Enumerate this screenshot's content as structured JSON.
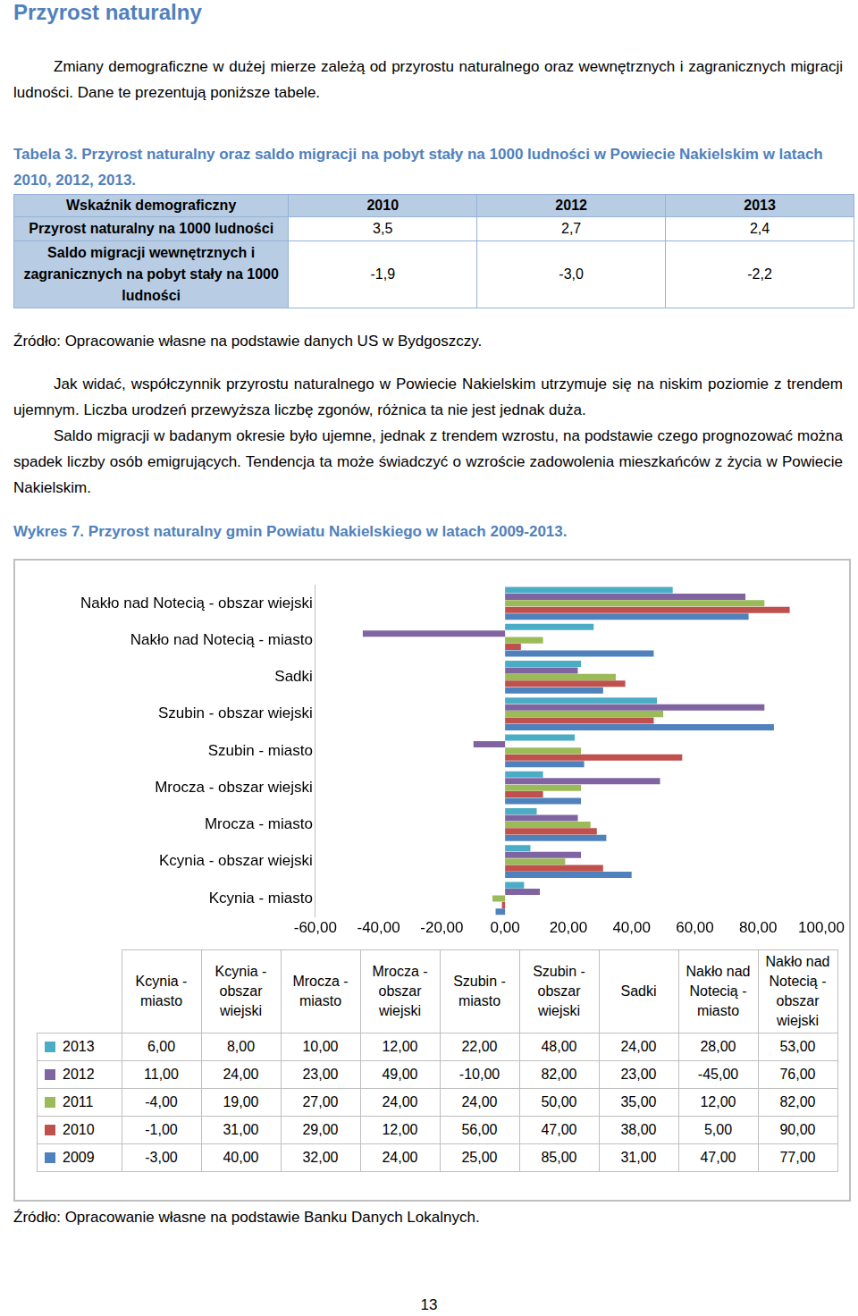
{
  "heading": "Przyrost naturalny",
  "intro": "Zmiany demograficzne w dużej mierze zależą od przyrostu naturalnego oraz wewnętrznych i zagranicznych migracji ludności. Dane te prezentują poniższe tabele.",
  "table3": {
    "caption": "Tabela 3. Przyrost naturalny oraz saldo migracji na pobyt stały na 1000 ludności w Powiecie Nakielskim w latach 2010, 2012, 2013.",
    "header": [
      "Wskaźnik demograficzny",
      "2010",
      "2012",
      "2013"
    ],
    "rows": [
      [
        "Przyrost naturalny na 1000 ludności",
        "3,5",
        "2,7",
        "2,4"
      ],
      [
        "Saldo migracji wewnętrznych i zagranicznych na pobyt stały na 1000 ludności",
        "-1,9",
        "-3,0",
        "-2,2"
      ]
    ],
    "source": "Źródło: Opracowanie własne na podstawie danych US w Bydgoszczy."
  },
  "paragraphs": [
    "Jak widać, współczynnik przyrostu naturalnego w Powiecie Nakielskim utrzymuje się na niskim poziomie z trendem ujemnym. Liczba urodzeń przewyższa liczbę zgonów, różnica ta nie jest jednak duża.",
    "Saldo migracji w badanym okresie było ujemne, jednak z trendem wzrostu, na podstawie czego prognozować można spadek liczby osób emigrujących. Tendencja ta może świadczyć o wzroście zadowolenia mieszkańców z życia w Powiecie Nakielskim."
  ],
  "chart_data": {
    "type": "bar",
    "orientation": "horizontal",
    "title": "Wykres 7. Przyrost naturalny gmin Powiatu Nakielskiego w latach 2009-2013.",
    "categories": [
      "Kcynia - miasto",
      "Kcynia - obszar wiejski",
      "Mrocza - miasto",
      "Mrocza - obszar wiejski",
      "Szubin - miasto",
      "Szubin - obszar wiejski",
      "Sadki",
      "Nakło nad Notecią - miasto",
      "Nakło nad Notecią - obszar wiejski"
    ],
    "series": [
      {
        "name": "2013",
        "color": "#4bacc6",
        "values": [
          6,
          8,
          10,
          12,
          22,
          48,
          24,
          28,
          53
        ],
        "value_labels": [
          "6,00",
          "8,00",
          "10,00",
          "12,00",
          "22,00",
          "48,00",
          "24,00",
          "28,00",
          "53,00"
        ]
      },
      {
        "name": "2012",
        "color": "#8064a2",
        "values": [
          11,
          24,
          23,
          49,
          -10,
          82,
          23,
          -45,
          76
        ],
        "value_labels": [
          "11,00",
          "24,00",
          "23,00",
          "49,00",
          "-10,00",
          "82,00",
          "23,00",
          "-45,00",
          "76,00"
        ]
      },
      {
        "name": "2011",
        "color": "#9bbb59",
        "values": [
          -4,
          19,
          27,
          24,
          24,
          50,
          35,
          12,
          82
        ],
        "value_labels": [
          "-4,00",
          "19,00",
          "27,00",
          "24,00",
          "24,00",
          "50,00",
          "35,00",
          "12,00",
          "82,00"
        ]
      },
      {
        "name": "2010",
        "color": "#c0504d",
        "values": [
          -1,
          31,
          29,
          12,
          56,
          47,
          38,
          5,
          90
        ],
        "value_labels": [
          "-1,00",
          "31,00",
          "29,00",
          "12,00",
          "56,00",
          "47,00",
          "38,00",
          "5,00",
          "90,00"
        ]
      },
      {
        "name": "2009",
        "color": "#4f81bd",
        "values": [
          -3,
          40,
          32,
          24,
          25,
          85,
          31,
          47,
          77
        ],
        "value_labels": [
          "-3,00",
          "40,00",
          "32,00",
          "24,00",
          "25,00",
          "85,00",
          "31,00",
          "47,00",
          "77,00"
        ]
      }
    ],
    "xlim": [
      -60,
      100
    ],
    "xticks": [
      {
        "value": -60,
        "label": "-60,00"
      },
      {
        "value": -40,
        "label": "-40,00"
      },
      {
        "value": -20,
        "label": "-20,00"
      },
      {
        "value": 0,
        "label": "0,00"
      },
      {
        "value": 20,
        "label": "20,00"
      },
      {
        "value": 40,
        "label": "40,00"
      },
      {
        "value": 60,
        "label": "60,00"
      },
      {
        "value": 80,
        "label": "80,00"
      },
      {
        "value": 100,
        "label": "100,00"
      }
    ],
    "grid": false,
    "source": "Źródło: Opracowanie własne na podstawie Banku Danych Lokalnych."
  },
  "page_number": "13"
}
